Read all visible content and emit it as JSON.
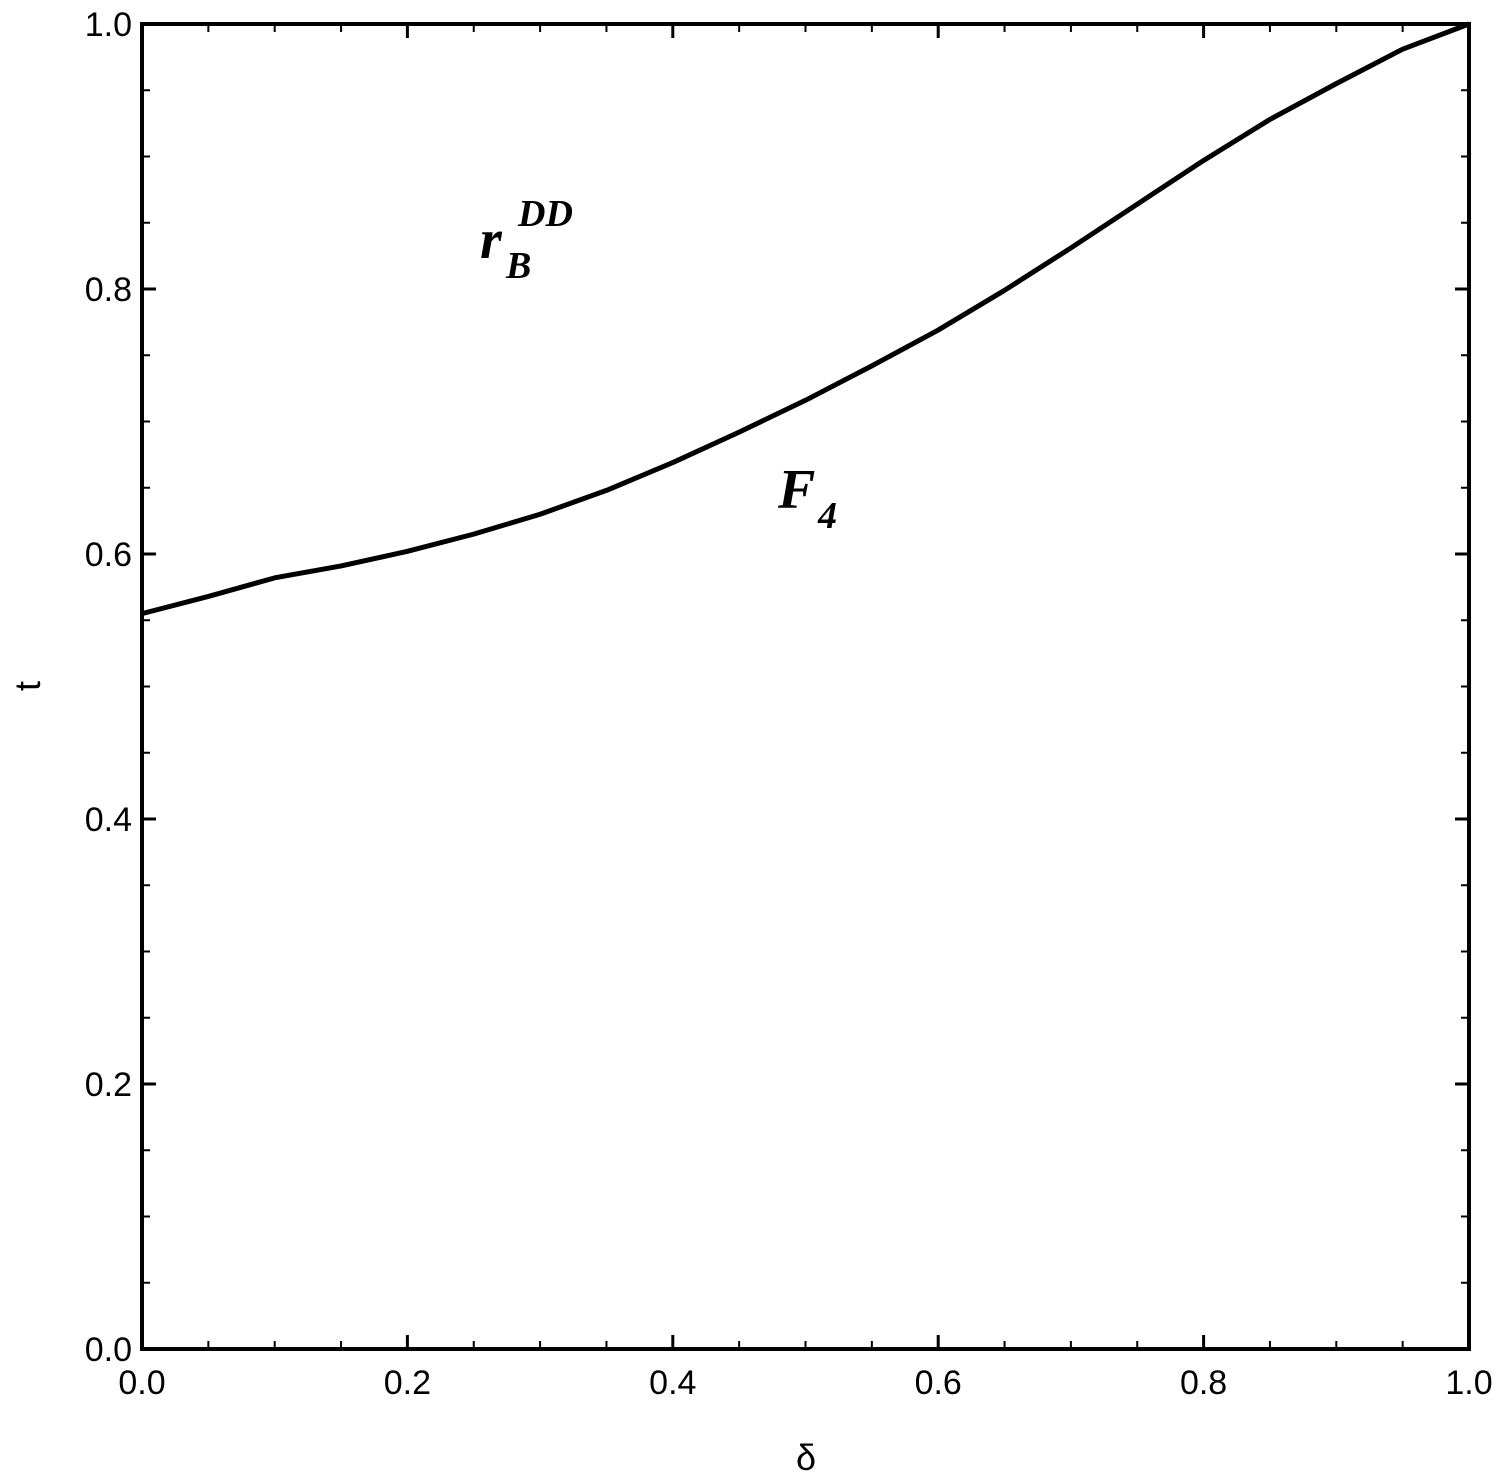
{
  "chart_data": {
    "type": "line",
    "x_label": "δ",
    "y_label": "t",
    "x": [
      0,
      0.05,
      0.1,
      0.15,
      0.2,
      0.25,
      0.3,
      0.35,
      0.4,
      0.45,
      0.5,
      0.55,
      0.6,
      0.65,
      0.7,
      0.75,
      0.8,
      0.85,
      0.9,
      0.95,
      1.0
    ],
    "series": [
      {
        "color": "#000000",
        "values": [
          0.555,
          0.568,
          0.582,
          0.591,
          0.602,
          0.615,
          0.63,
          0.648,
          0.669,
          0.692,
          0.716,
          0.742,
          0.769,
          0.799,
          0.831,
          0.864,
          0.897,
          0.928,
          0.955,
          0.981,
          1.0
        ]
      }
    ],
    "xlim": [
      0,
      1
    ],
    "ylim": [
      0,
      1
    ],
    "xticks": [
      {
        "value": 0,
        "label": "0.0"
      },
      0.2,
      0.4,
      0.6,
      0.8,
      {
        "value": 1,
        "label": "1.0"
      }
    ],
    "yticks": [
      {
        "value": 0,
        "label": "0.0"
      },
      0.2,
      0.4,
      0.6,
      0.8,
      {
        "value": 1,
        "label": "1.0"
      }
    ],
    "grid": false,
    "annotations": [
      {
        "base": "r",
        "sub": "B",
        "sup": "DD"
      },
      {
        "base": "F",
        "sub": "4"
      }
    ]
  }
}
